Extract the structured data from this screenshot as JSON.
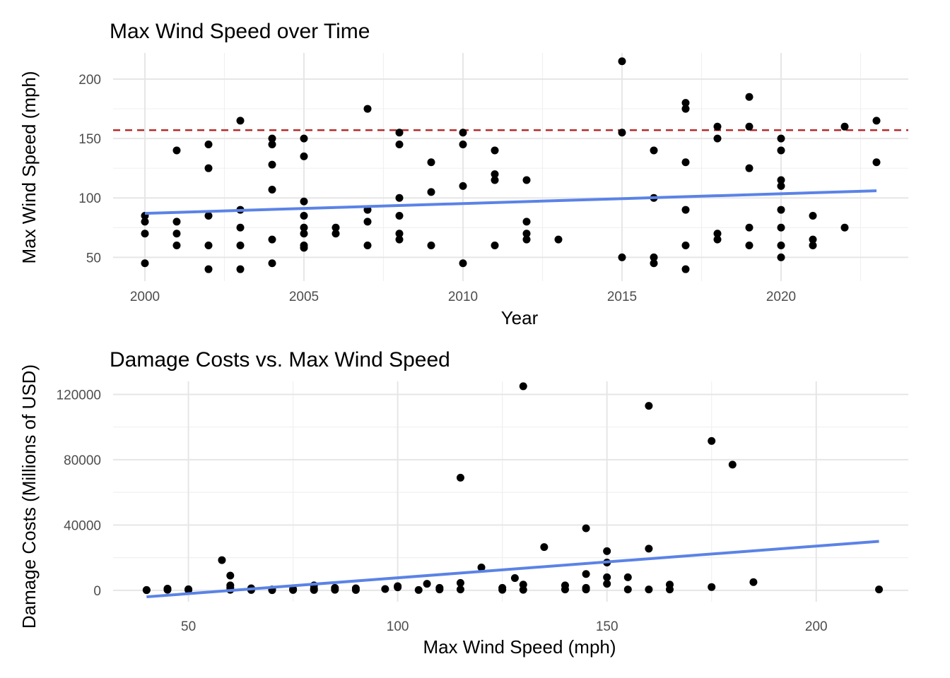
{
  "chart_data": [
    {
      "type": "scatter",
      "title": "Max Wind Speed over Time",
      "xlabel": "Year",
      "ylabel": "Max Wind Speed (mph)",
      "xlim": [
        1999,
        2024
      ],
      "ylim": [
        30,
        222
      ],
      "x_ticks": [
        2000,
        2005,
        2010,
        2015,
        2020
      ],
      "y_ticks": [
        50,
        100,
        150,
        200
      ],
      "grid": true,
      "reference_line": {
        "y": 157,
        "style": "dashed",
        "color": "#b22222"
      },
      "trend_line": {
        "x": [
          2000,
          2023
        ],
        "y": [
          87,
          106
        ],
        "color": "#5b83e6"
      },
      "points": [
        [
          2000,
          85
        ],
        [
          2000,
          80
        ],
        [
          2000,
          70
        ],
        [
          2000,
          45
        ],
        [
          2001,
          140
        ],
        [
          2001,
          80
        ],
        [
          2001,
          70
        ],
        [
          2001,
          60
        ],
        [
          2002,
          145
        ],
        [
          2002,
          125
        ],
        [
          2002,
          85
        ],
        [
          2002,
          60
        ],
        [
          2002,
          40
        ],
        [
          2003,
          165
        ],
        [
          2003,
          90
        ],
        [
          2003,
          75
        ],
        [
          2003,
          60
        ],
        [
          2003,
          40
        ],
        [
          2004,
          150
        ],
        [
          2004,
          145
        ],
        [
          2004,
          128
        ],
        [
          2004,
          107
        ],
        [
          2004,
          65
        ],
        [
          2004,
          45
        ],
        [
          2005,
          150
        ],
        [
          2005,
          135
        ],
        [
          2005,
          97
        ],
        [
          2005,
          85
        ],
        [
          2005,
          75
        ],
        [
          2005,
          70
        ],
        [
          2005,
          60
        ],
        [
          2005,
          58
        ],
        [
          2006,
          75
        ],
        [
          2006,
          70
        ],
        [
          2007,
          175
        ],
        [
          2007,
          90
        ],
        [
          2007,
          80
        ],
        [
          2007,
          60
        ],
        [
          2008,
          155
        ],
        [
          2008,
          145
        ],
        [
          2008,
          100
        ],
        [
          2008,
          85
        ],
        [
          2008,
          70
        ],
        [
          2008,
          65
        ],
        [
          2009,
          130
        ],
        [
          2009,
          105
        ],
        [
          2009,
          60
        ],
        [
          2010,
          155
        ],
        [
          2010,
          145
        ],
        [
          2010,
          110
        ],
        [
          2010,
          45
        ],
        [
          2011,
          140
        ],
        [
          2011,
          120
        ],
        [
          2011,
          115
        ],
        [
          2011,
          60
        ],
        [
          2012,
          115
        ],
        [
          2012,
          80
        ],
        [
          2012,
          70
        ],
        [
          2012,
          65
        ],
        [
          2013,
          65
        ],
        [
          2015,
          215
        ],
        [
          2015,
          155
        ],
        [
          2015,
          50
        ],
        [
          2016,
          140
        ],
        [
          2016,
          100
        ],
        [
          2016,
          50
        ],
        [
          2016,
          45
        ],
        [
          2017,
          180
        ],
        [
          2017,
          175
        ],
        [
          2017,
          130
        ],
        [
          2017,
          90
        ],
        [
          2017,
          60
        ],
        [
          2017,
          40
        ],
        [
          2018,
          160
        ],
        [
          2018,
          150
        ],
        [
          2018,
          70
        ],
        [
          2018,
          65
        ],
        [
          2019,
          185
        ],
        [
          2019,
          160
        ],
        [
          2019,
          125
        ],
        [
          2019,
          75
        ],
        [
          2019,
          60
        ],
        [
          2020,
          150
        ],
        [
          2020,
          140
        ],
        [
          2020,
          115
        ],
        [
          2020,
          110
        ],
        [
          2020,
          90
        ],
        [
          2020,
          75
        ],
        [
          2020,
          60
        ],
        [
          2020,
          50
        ],
        [
          2021,
          85
        ],
        [
          2021,
          65
        ],
        [
          2021,
          60
        ],
        [
          2022,
          160
        ],
        [
          2022,
          75
        ],
        [
          2023,
          165
        ],
        [
          2023,
          130
        ]
      ]
    },
    {
      "type": "scatter",
      "title": "Damage Costs vs. Max Wind Speed",
      "xlabel": "Max Wind Speed (mph)",
      "ylabel": "Damage Costs (Millions of USD)",
      "xlim": [
        32,
        222
      ],
      "ylim": [
        -7000,
        128000
      ],
      "x_ticks": [
        50,
        100,
        150,
        200
      ],
      "y_ticks": [
        0,
        40000,
        80000,
        120000
      ],
      "grid": true,
      "trend_line": {
        "x": [
          40,
          215
        ],
        "y": [
          -4000,
          30000
        ],
        "color": "#5b83e6"
      },
      "points": [
        [
          40,
          200
        ],
        [
          40,
          100
        ],
        [
          45,
          1000
        ],
        [
          45,
          300
        ],
        [
          50,
          600
        ],
        [
          50,
          200
        ],
        [
          58,
          18500
        ],
        [
          60,
          9000
        ],
        [
          60,
          3000
        ],
        [
          60,
          1500
        ],
        [
          60,
          300
        ],
        [
          65,
          1200
        ],
        [
          65,
          200
        ],
        [
          70,
          500
        ],
        [
          70,
          100
        ],
        [
          75,
          800
        ],
        [
          75,
          200
        ],
        [
          80,
          3000
        ],
        [
          80,
          1000
        ],
        [
          80,
          200
        ],
        [
          85,
          1500
        ],
        [
          85,
          300
        ],
        [
          90,
          1200
        ],
        [
          90,
          200
        ],
        [
          97,
          800
        ],
        [
          100,
          2500
        ],
        [
          100,
          1800
        ],
        [
          105,
          200
        ],
        [
          107,
          4000
        ],
        [
          110,
          1500
        ],
        [
          110,
          500
        ],
        [
          115,
          69000
        ],
        [
          115,
          4500
        ],
        [
          115,
          500
        ],
        [
          120,
          14000
        ],
        [
          125,
          1500
        ],
        [
          125,
          300
        ],
        [
          128,
          7500
        ],
        [
          130,
          125000
        ],
        [
          130,
          3500
        ],
        [
          130,
          300
        ],
        [
          135,
          26500
        ],
        [
          140,
          3000
        ],
        [
          140,
          500
        ],
        [
          145,
          38000
        ],
        [
          145,
          10000
        ],
        [
          145,
          1500
        ],
        [
          145,
          500
        ],
        [
          150,
          24000
        ],
        [
          150,
          17000
        ],
        [
          150,
          8000
        ],
        [
          150,
          4000
        ],
        [
          155,
          8000
        ],
        [
          155,
          500
        ],
        [
          160,
          113000
        ],
        [
          160,
          25500
        ],
        [
          160,
          500
        ],
        [
          165,
          3500
        ],
        [
          165,
          500
        ],
        [
          175,
          91500
        ],
        [
          175,
          2000
        ],
        [
          180,
          77000
        ],
        [
          185,
          5000
        ],
        [
          215,
          500
        ]
      ]
    }
  ]
}
